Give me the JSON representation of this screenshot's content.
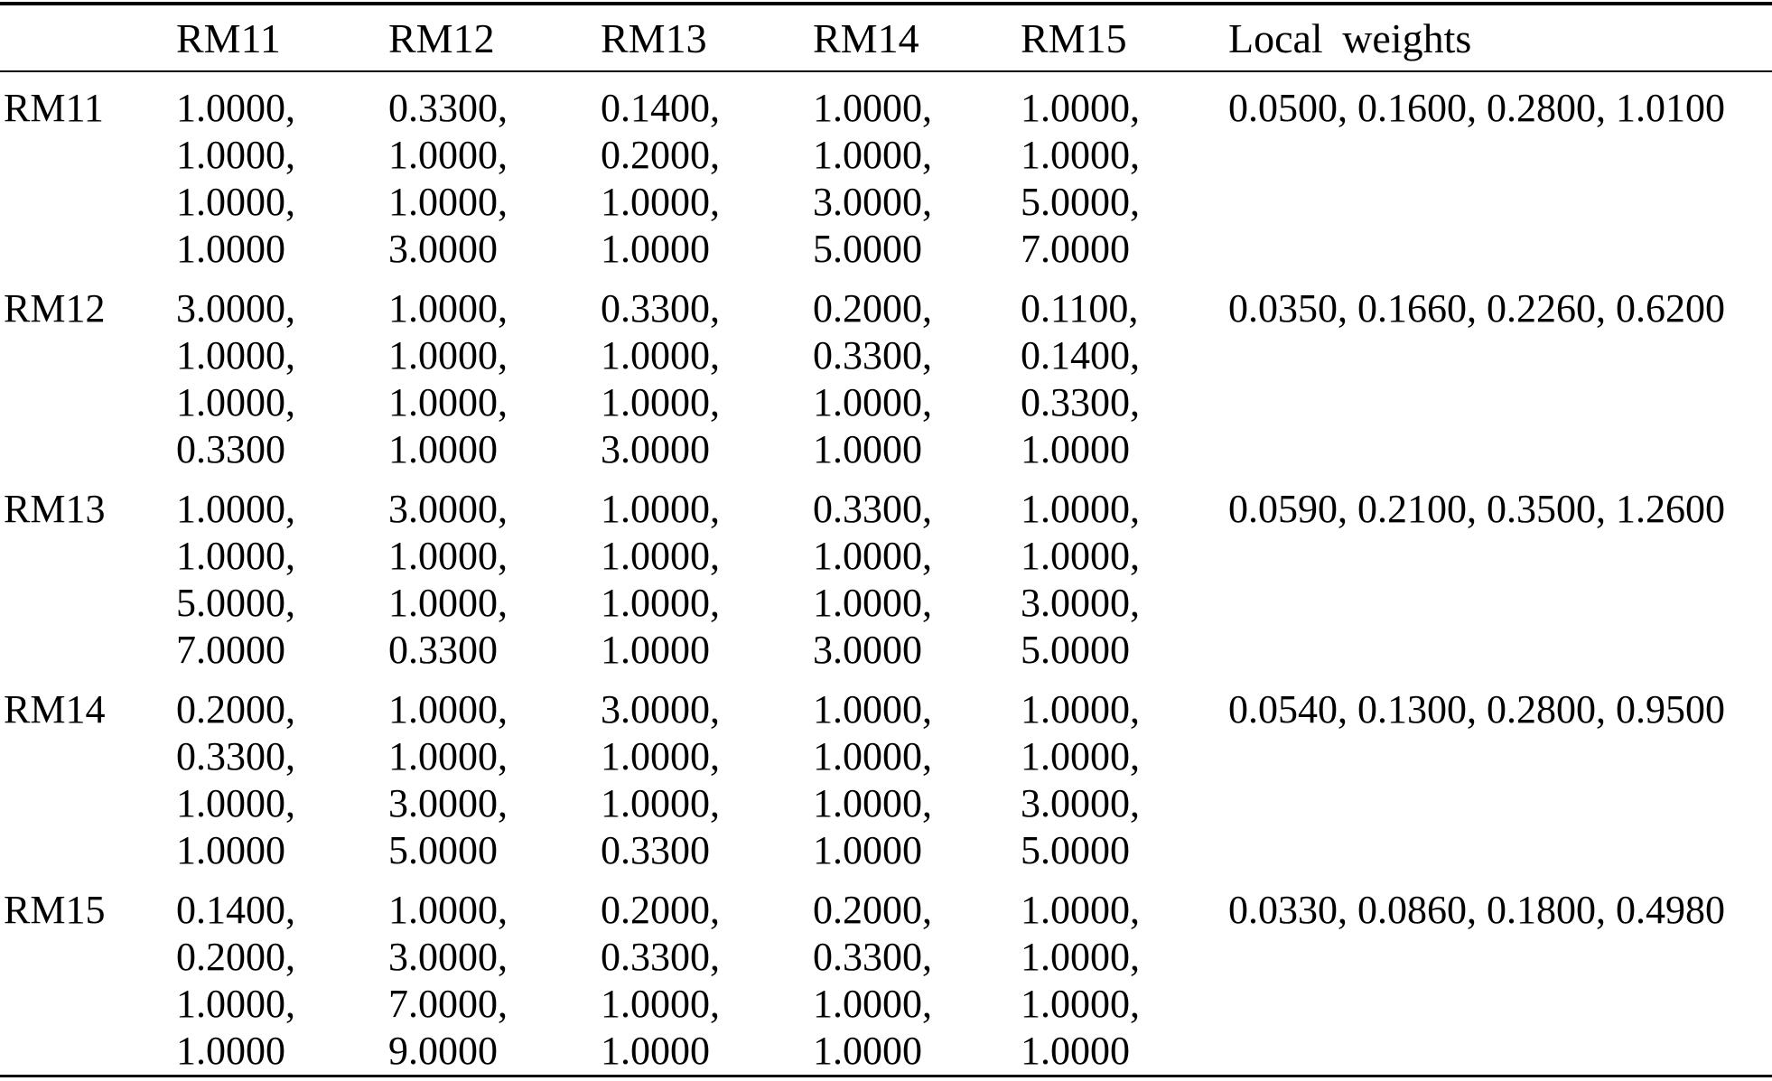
{
  "table": {
    "headers": [
      "RM11",
      "RM12",
      "RM13",
      "RM14",
      "RM15",
      "Local weights"
    ],
    "rows": [
      {
        "label": "RM11",
        "rm11": "1.0000,\n1.0000,\n1.0000,\n1.0000",
        "rm12": "0.3300,\n1.0000,\n1.0000,\n3.0000",
        "rm13": "0.1400,\n0.2000,\n1.0000,\n1.0000",
        "rm14": "1.0000,\n1.0000,\n3.0000,\n5.0000",
        "rm15": "1.0000,\n1.0000,\n5.0000,\n7.0000",
        "local_weights": "0.0500, 0.1600, 0.2800, 1.0100"
      },
      {
        "label": "RM12",
        "rm11": "3.0000,\n1.0000,\n1.0000,\n0.3300",
        "rm12": "1.0000,\n1.0000,\n1.0000,\n1.0000",
        "rm13": "0.3300,\n1.0000,\n1.0000,\n3.0000",
        "rm14": "0.2000,\n0.3300,\n1.0000,\n1.0000",
        "rm15": "0.1100,\n0.1400,\n0.3300,\n1.0000",
        "local_weights": "0.0350, 0.1660, 0.2260, 0.6200"
      },
      {
        "label": "RM13",
        "rm11": "1.0000,\n1.0000,\n5.0000,\n7.0000",
        "rm12": "3.0000,\n1.0000,\n1.0000,\n0.3300",
        "rm13": "1.0000,\n1.0000,\n1.0000,\n1.0000",
        "rm14": "0.3300,\n1.0000,\n1.0000,\n3.0000",
        "rm15": "1.0000,\n1.0000,\n3.0000,\n5.0000",
        "local_weights": "0.0590, 0.2100, 0.3500, 1.2600"
      },
      {
        "label": "RM14",
        "rm11": "0.2000,\n0.3300,\n1.0000,\n1.0000",
        "rm12": "1.0000,\n1.0000,\n3.0000,\n5.0000",
        "rm13": "3.0000,\n1.0000,\n1.0000,\n0.3300",
        "rm14": "1.0000,\n1.0000,\n1.0000,\n1.0000",
        "rm15": "1.0000,\n1.0000,\n3.0000,\n5.0000",
        "local_weights": "0.0540, 0.1300, 0.2800, 0.9500"
      },
      {
        "label": "RM15",
        "rm11": "0.1400,\n0.2000,\n1.0000,\n1.0000",
        "rm12": "1.0000,\n3.0000,\n7.0000,\n9.0000",
        "rm13": "0.2000,\n0.3300,\n1.0000,\n1.0000",
        "rm14": "0.2000,\n0.3300,\n1.0000,\n1.0000",
        "rm15": "1.0000,\n1.0000,\n1.0000,\n1.0000",
        "local_weights": "0.0330, 0.0860, 0.1800, 0.4980"
      }
    ]
  }
}
